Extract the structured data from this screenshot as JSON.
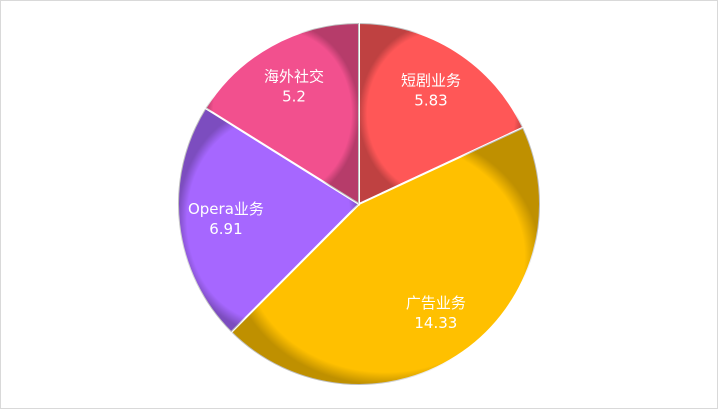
{
  "chart_data": {
    "type": "pie",
    "categories": [
      "短剧业务",
      "广告业务",
      "Opera业务",
      "海外社交"
    ],
    "values": [
      5.83,
      14.33,
      6.91,
      5.2
    ],
    "colors": [
      "#ff5757",
      "#ffc000",
      "#a667ff",
      "#f2508e"
    ]
  }
}
